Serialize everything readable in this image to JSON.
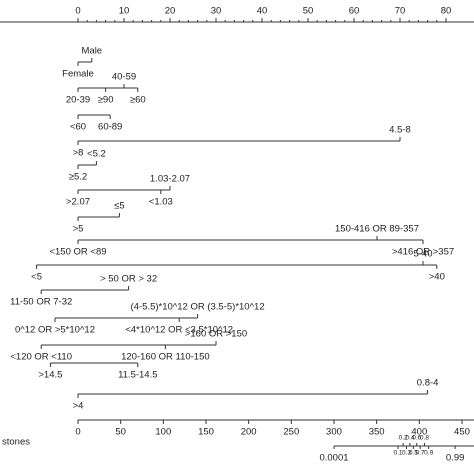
{
  "points_axis": {
    "ticks": [
      0,
      10,
      20,
      30,
      40,
      50,
      60,
      70,
      80
    ]
  },
  "variables": [
    {
      "levels": [
        {
          "label": "Male",
          "points": 3
        },
        {
          "label": "Female",
          "points": 0
        }
      ]
    },
    {
      "levels": [
        {
          "label": "40-59",
          "points": 10
        },
        {
          "label": "20-39",
          "points": 0
        },
        {
          "label": "≥90",
          "points": 6
        },
        {
          "label": "≥60",
          "points": 13
        }
      ]
    },
    {
      "levels": [
        {
          "label": "<60",
          "points": 0
        },
        {
          "label": "60-89",
          "points": 7
        }
      ]
    },
    {
      "levels": [
        {
          "label": "4.5-8",
          "points": 70
        },
        {
          "label": ">8",
          "points": 0
        }
      ]
    },
    {
      "levels": [
        {
          "label": "<5.2",
          "points": 4
        },
        {
          "label": "≥5.2",
          "points": 0
        }
      ]
    },
    {
      "levels": [
        {
          "label": "1.03-2.07",
          "points": 20
        },
        {
          "label": ">2.07",
          "points": 0
        },
        {
          "label": "<1.03",
          "points": 18
        }
      ]
    },
    {
      "levels": [
        {
          "label": "≤5",
          "points": 9
        },
        {
          "label": ">5",
          "points": 0
        }
      ]
    },
    {
      "levels": [
        {
          "label": "150-416 OR 89-357",
          "points": 65
        },
        {
          "label": ">416 OR >357",
          "points": 75
        },
        {
          "label": "<150 OR <89",
          "points": 0
        }
      ]
    },
    {
      "levels": [
        {
          "label": "<5",
          "points": -9
        },
        {
          "label": "5-40",
          "points": 75
        },
        {
          "label": ">40",
          "points": 78
        }
      ]
    },
    {
      "levels": [
        {
          "label": "> 50 OR > 32",
          "points": 11
        },
        {
          "label": "11-50 OR 7-32",
          "points": -8
        }
      ]
    },
    {
      "levels": [
        {
          "label": "(4-5.5)*10^12 OR (3.5-5)*10^12",
          "points": 26
        },
        {
          "label": "0^12 OR >5*10^12",
          "points": -5
        },
        {
          "label": "<4*10^12 OR <3.5*10^12",
          "points": 22
        }
      ]
    },
    {
      "levels": [
        {
          "label": ">160 OR >150",
          "points": 30
        },
        {
          "label": "<120 OR <110",
          "points": -8
        },
        {
          "label": "120-160 OR 110-150",
          "points": 19
        }
      ]
    },
    {
      "levels": [
        {
          "label": ">14.5",
          "points": -6
        },
        {
          "label": "11.5-14.5",
          "points": 13
        }
      ]
    },
    {
      "levels": [
        {
          "label": "0.8-4",
          "points": 76
        },
        {
          "label": ">4",
          "points": 0
        }
      ]
    }
  ],
  "total_points_axis": {
    "ticks": [
      0,
      50,
      100,
      150,
      200,
      250,
      300,
      350,
      400,
      450
    ]
  },
  "risk_axis": {
    "title": "stones",
    "ticks": [
      {
        "label": "0.0001",
        "total_points": 300
      },
      {
        "label": "0.1",
        "total_points": 375
      },
      {
        "label": "0.2",
        "total_points": 381
      },
      {
        "label": "0.3",
        "total_points": 385
      },
      {
        "label": "0.4",
        "total_points": 389
      },
      {
        "label": "0.5",
        "total_points": 393
      },
      {
        "label": "0.6",
        "total_points": 397
      },
      {
        "label": "0.7",
        "total_points": 401
      },
      {
        "label": "0.8",
        "total_points": 406
      },
      {
        "label": "0.9",
        "total_points": 411
      },
      {
        "label": "0.99",
        "total_points": 442
      }
    ]
  }
}
